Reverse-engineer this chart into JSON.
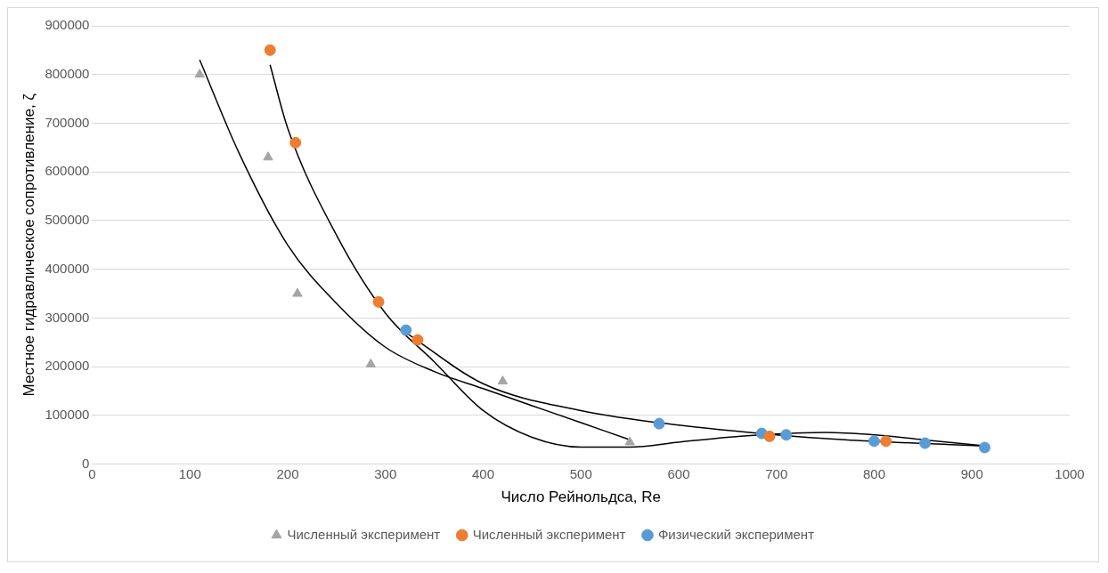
{
  "chart_data": {
    "type": "scatter",
    "xlabel": "Число Рейнольдса, Re",
    "ylabel": "Местное гидравлическое сопротивление, ζ",
    "xlim": [
      0,
      1000
    ],
    "xticks": [
      0,
      100,
      200,
      300,
      400,
      500,
      600,
      700,
      800,
      900,
      1000
    ],
    "ylim": [
      0,
      900000
    ],
    "yticks": [
      0,
      100000,
      200000,
      300000,
      400000,
      500000,
      600000,
      700000,
      800000,
      900000
    ],
    "grid": "y",
    "legend": "bottom",
    "series": [
      {
        "name": "Численный эксперимент",
        "type": "scatter",
        "marker": "triangle",
        "color": "#a5a5a5",
        "x": [
          110,
          180,
          210,
          285,
          420,
          550
        ],
        "values": [
          800000,
          630000,
          350000,
          205000,
          170000,
          45000
        ]
      },
      {
        "name": "Численный эксперимент",
        "type": "scatter",
        "marker": "circle",
        "color": "#ed7d31",
        "x": [
          182,
          208,
          293,
          333,
          693,
          812
        ],
        "values": [
          850000,
          660000,
          333000,
          255000,
          57000,
          47000
        ]
      },
      {
        "name": "Физический эксперимент",
        "type": "scatter",
        "marker": "circle",
        "color": "#5b9bd5",
        "x": [
          321,
          580,
          685,
          710,
          800,
          852,
          913
        ],
        "values": [
          275000,
          83000,
          63000,
          60000,
          47000,
          43000,
          34000
        ]
      },
      {
        "type": "line",
        "marker": "none",
        "color": "#000000",
        "x": [
          110,
          150,
          200,
          250,
          300,
          350,
          400,
          450,
          500,
          550
        ],
        "values": [
          830000,
          640000,
          450000,
          330000,
          240000,
          190000,
          155000,
          120000,
          85000,
          50000
        ]
      },
      {
        "type": "line",
        "marker": "none",
        "color": "#000000",
        "x": [
          182,
          200,
          250,
          300,
          350,
          400,
          450,
          500,
          550,
          600,
          650,
          700,
          750,
          800,
          850,
          910
        ],
        "values": [
          820000,
          690000,
          470000,
          310000,
          210000,
          110000,
          55000,
          35000,
          35000,
          45000,
          55000,
          62000,
          65000,
          60000,
          50000,
          38000
        ]
      },
      {
        "type": "line",
        "marker": "none",
        "color": "#000000",
        "x": [
          321,
          400,
          500,
          600,
          700,
          770,
          910
        ],
        "values": [
          270000,
          165000,
          110000,
          80000,
          60000,
          50000,
          37000
        ]
      }
    ]
  }
}
